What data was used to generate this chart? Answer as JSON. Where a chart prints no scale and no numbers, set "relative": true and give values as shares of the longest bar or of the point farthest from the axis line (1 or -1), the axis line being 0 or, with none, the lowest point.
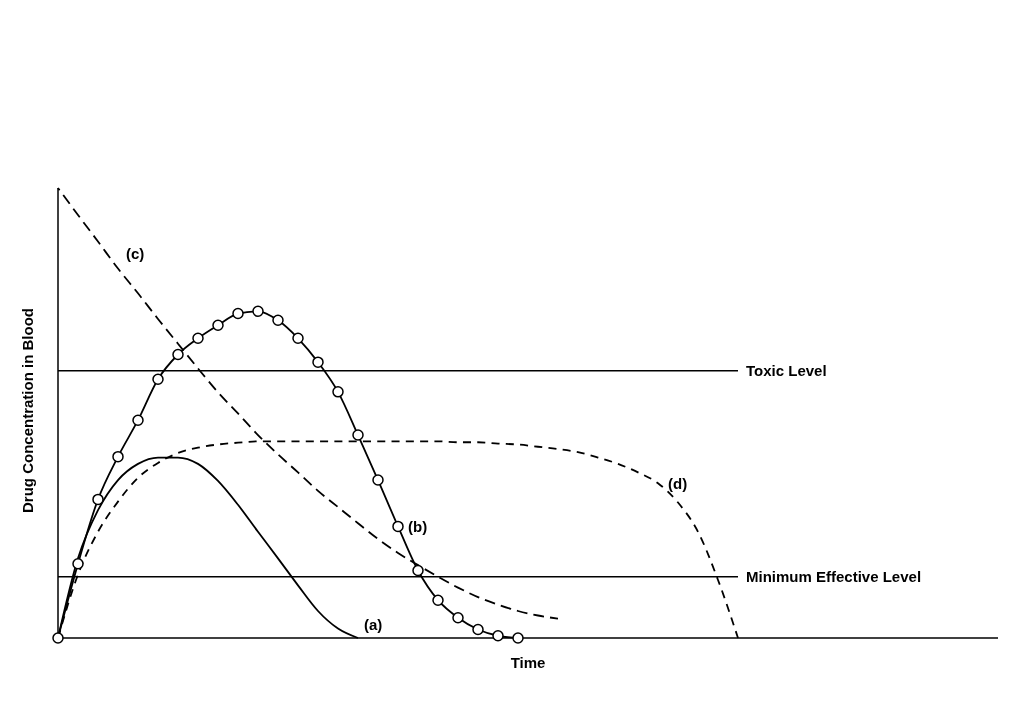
{
  "chart_data": {
    "type": "line",
    "relative": true,
    "xlabel": "Time",
    "ylabel": "Drug Concentration in Blood",
    "legend": false,
    "grid": false,
    "categories": [
      null,
      null,
      null,
      null,
      null,
      null,
      null,
      null,
      null,
      null,
      null,
      null,
      null,
      null,
      null,
      null,
      null,
      null,
      null,
      null,
      null,
      null,
      null,
      null,
      null,
      null,
      null,
      null,
      null,
      null,
      null,
      null,
      null,
      null,
      null,
      null,
      null,
      null,
      null,
      null,
      null,
      null,
      null,
      null,
      null,
      null,
      null,
      null
    ],
    "series": [
      {
        "name": "(a)",
        "color": "#000000",
        "marker": "none",
        "line_style": "solid",
        "values": [
          0,
          0.177,
          0.284,
          0.351,
          0.387,
          0.401,
          0.401,
          0.387,
          0.349,
          0.296,
          0.236,
          0.177,
          0.117,
          0.06,
          0.021,
          0,
          null,
          null,
          null,
          null,
          null,
          null,
          null,
          null,
          null,
          null,
          null,
          null,
          null,
          null,
          null,
          null,
          null,
          null,
          null,
          null,
          null,
          null,
          null,
          null,
          null,
          null,
          null,
          null,
          null,
          null,
          null,
          null
        ]
      },
      {
        "name": "(b)",
        "color": "#000000",
        "marker": "circle",
        "line_style": "solid",
        "values": [
          0,
          0.165,
          0.308,
          0.403,
          0.484,
          0.575,
          0.63,
          0.666,
          0.695,
          0.721,
          0.726,
          0.706,
          0.666,
          0.613,
          0.547,
          0.451,
          0.351,
          0.248,
          0.15,
          0.084,
          0.045,
          0.019,
          0.005,
          0,
          null,
          null,
          null,
          null,
          null,
          null,
          null,
          null,
          null,
          null,
          null,
          null,
          null,
          null,
          null,
          null,
          null,
          null,
          null,
          null,
          null,
          null,
          null,
          null
        ]
      },
      {
        "name": "(c)",
        "color": "#000000",
        "marker": "none",
        "line_style": "dashed",
        "values": [
          1,
          0.94,
          0.881,
          0.821,
          0.766,
          0.709,
          0.654,
          0.599,
          0.546,
          0.499,
          0.451,
          0.408,
          0.368,
          0.327,
          0.291,
          0.255,
          0.22,
          0.189,
          0.162,
          0.136,
          0.112,
          0.091,
          0.074,
          0.06,
          0.05,
          0.043,
          null,
          null,
          null,
          null,
          null,
          null,
          null,
          null,
          null,
          null,
          null,
          null,
          null,
          null,
          null,
          null,
          null,
          null,
          null,
          null,
          null,
          null
        ]
      },
      {
        "name": "(d)",
        "color": "#000000",
        "marker": "none",
        "line_style": "dotted",
        "values": [
          0,
          0.141,
          0.236,
          0.303,
          0.356,
          0.389,
          0.411,
          0.423,
          0.43,
          0.434,
          0.437,
          0.437,
          0.437,
          0.437,
          0.437,
          0.437,
          0.437,
          0.437,
          0.437,
          0.437,
          0.435,
          0.435,
          0.432,
          0.43,
          0.425,
          0.42,
          0.413,
          0.401,
          0.387,
          0.368,
          0.344,
          0.301,
          0.236,
          0.129,
          0,
          null,
          null,
          null,
          null,
          null,
          null,
          null,
          null,
          null,
          null,
          null,
          null,
          null
        ]
      }
    ],
    "ref_lines": [
      {
        "axis": "y",
        "value": 0.594,
        "label": "Toxic Level",
        "color": "#000000"
      },
      {
        "axis": "y",
        "value": 0.136,
        "label": "Minimum Effective Level",
        "color": "#000000"
      }
    ]
  }
}
